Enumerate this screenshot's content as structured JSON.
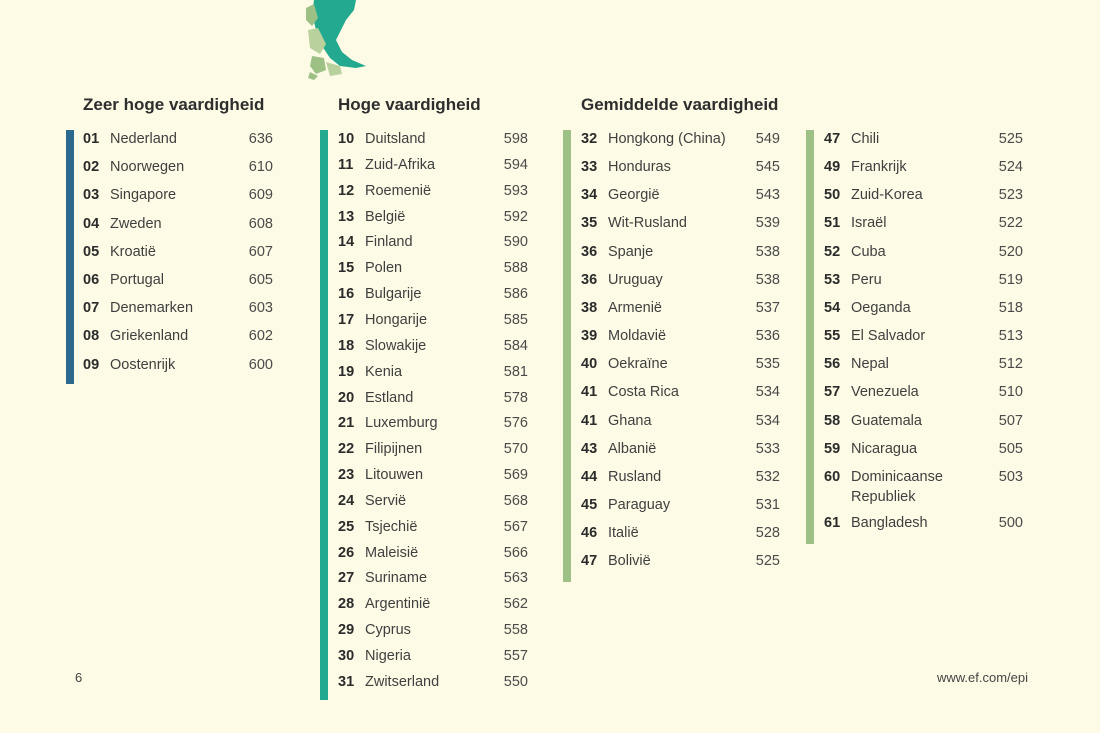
{
  "sections": {
    "very_high": {
      "title": "Zeer hoge vaardigheid",
      "color": "#2b6a8e",
      "items": [
        {
          "rank": "01",
          "country": "Nederland",
          "score": "636"
        },
        {
          "rank": "02",
          "country": "Noorwegen",
          "score": "610"
        },
        {
          "rank": "03",
          "country": "Singapore",
          "score": "609"
        },
        {
          "rank": "04",
          "country": "Zweden",
          "score": "608"
        },
        {
          "rank": "05",
          "country": "Kroatië",
          "score": "607"
        },
        {
          "rank": "06",
          "country": "Portugal",
          "score": "605"
        },
        {
          "rank": "07",
          "country": "Denemarken",
          "score": "603"
        },
        {
          "rank": "08",
          "country": "Griekenland",
          "score": "602"
        },
        {
          "rank": "09",
          "country": "Oostenrijk",
          "score": "600"
        }
      ]
    },
    "high": {
      "title": "Hoge vaardigheid",
      "color": "#23a98f",
      "items": [
        {
          "rank": "10",
          "country": "Duitsland",
          "score": "598"
        },
        {
          "rank": "11",
          "country": "Zuid-Afrika",
          "score": "594"
        },
        {
          "rank": "12",
          "country": "Roemenië",
          "score": "593"
        },
        {
          "rank": "13",
          "country": "België",
          "score": "592"
        },
        {
          "rank": "14",
          "country": "Finland",
          "score": "590"
        },
        {
          "rank": "15",
          "country": "Polen",
          "score": "588"
        },
        {
          "rank": "16",
          "country": "Bulgarije",
          "score": "586"
        },
        {
          "rank": "17",
          "country": "Hongarije",
          "score": "585"
        },
        {
          "rank": "18",
          "country": "Slowakije",
          "score": "584"
        },
        {
          "rank": "19",
          "country": "Kenia",
          "score": "581"
        },
        {
          "rank": "20",
          "country": "Estland",
          "score": "578"
        },
        {
          "rank": "21",
          "country": "Luxemburg",
          "score": "576"
        },
        {
          "rank": "22",
          "country": "Filipijnen",
          "score": "570"
        },
        {
          "rank": "23",
          "country": "Litouwen",
          "score": "569"
        },
        {
          "rank": "24",
          "country": "Servië",
          "score": "568"
        },
        {
          "rank": "25",
          "country": "Tsjechië",
          "score": "567"
        },
        {
          "rank": "26",
          "country": "Maleisië",
          "score": "566"
        },
        {
          "rank": "27",
          "country": "Suriname",
          "score": "563"
        },
        {
          "rank": "28",
          "country": "Argentinië",
          "score": "562"
        },
        {
          "rank": "29",
          "country": "Cyprus",
          "score": "558"
        },
        {
          "rank": "30",
          "country": "Nigeria",
          "score": "557"
        },
        {
          "rank": "31",
          "country": "Zwitserland",
          "score": "550"
        }
      ]
    },
    "moderate": {
      "title": "Gemiddelde vaardigheid",
      "color": "#9dc085",
      "items_col1": [
        {
          "rank": "32",
          "country": "Hongkong (China)",
          "score": "549"
        },
        {
          "rank": "33",
          "country": "Honduras",
          "score": "545"
        },
        {
          "rank": "34",
          "country": "Georgië",
          "score": "543"
        },
        {
          "rank": "35",
          "country": "Wit-Rusland",
          "score": "539"
        },
        {
          "rank": "36",
          "country": "Spanje",
          "score": "538"
        },
        {
          "rank": "36",
          "country": "Uruguay",
          "score": "538"
        },
        {
          "rank": "38",
          "country": "Armenië",
          "score": "537"
        },
        {
          "rank": "39",
          "country": "Moldavië",
          "score": "536"
        },
        {
          "rank": "40",
          "country": "Oekraïne",
          "score": "535"
        },
        {
          "rank": "41",
          "country": "Costa Rica",
          "score": "534"
        },
        {
          "rank": "41",
          "country": "Ghana",
          "score": "534"
        },
        {
          "rank": "43",
          "country": "Albanië",
          "score": "533"
        },
        {
          "rank": "44",
          "country": "Rusland",
          "score": "532"
        },
        {
          "rank": "45",
          "country": "Paraguay",
          "score": "531"
        },
        {
          "rank": "46",
          "country": "Italië",
          "score": "528"
        },
        {
          "rank": "47",
          "country": "Bolivië",
          "score": "525"
        }
      ],
      "items_col2": [
        {
          "rank": "47",
          "country": "Chili",
          "score": "525"
        },
        {
          "rank": "49",
          "country": "Frankrijk",
          "score": "524"
        },
        {
          "rank": "50",
          "country": "Zuid-Korea",
          "score": "523"
        },
        {
          "rank": "51",
          "country": "Israël",
          "score": "522"
        },
        {
          "rank": "52",
          "country": "Cuba",
          "score": "520"
        },
        {
          "rank": "53",
          "country": "Peru",
          "score": "519"
        },
        {
          "rank": "54",
          "country": "Oeganda",
          "score": "518"
        },
        {
          "rank": "55",
          "country": "El Salvador",
          "score": "513"
        },
        {
          "rank": "56",
          "country": "Nepal",
          "score": "512"
        },
        {
          "rank": "57",
          "country": "Venezuela",
          "score": "510"
        },
        {
          "rank": "58",
          "country": "Guatemala",
          "score": "507"
        },
        {
          "rank": "59",
          "country": "Nicaragua",
          "score": "505"
        },
        {
          "rank": "60",
          "country": "Dominicaanse Republiek",
          "score": "503"
        },
        {
          "rank": "61",
          "country": "Bangladesh",
          "score": "500"
        }
      ]
    }
  },
  "footer": {
    "page_number": "6",
    "url": "www.ef.com/epi"
  }
}
